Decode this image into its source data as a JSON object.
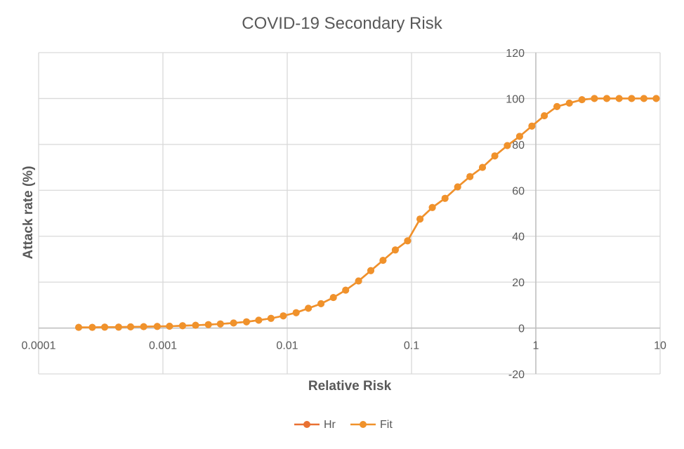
{
  "chart_data": {
    "type": "line",
    "title": "COVID-19 Secondary Risk",
    "xlabel": "Relative Risk",
    "ylabel": "Attack rate (%)",
    "x_scale": "log",
    "xlim": [
      0.0001,
      10
    ],
    "ylim": [
      -20,
      120
    ],
    "x_ticks": [
      "0.0001",
      "0.001",
      "0.01",
      "0.1",
      "1",
      "10"
    ],
    "x_tick_values": [
      0.0001,
      0.001,
      0.01,
      0.1,
      1,
      10
    ],
    "y_ticks": [
      "120",
      "100",
      "80",
      "60",
      "40",
      "20",
      "0",
      "-20"
    ],
    "y_tick_values": [
      120,
      100,
      80,
      60,
      40,
      20,
      0,
      -20
    ],
    "grid": true,
    "legend_position": "bottom",
    "series": [
      {
        "name": "Hr",
        "color": "#e97132",
        "x": [
          0.00021,
          0.00027,
          0.00034,
          0.00044,
          0.00055,
          0.0007,
          0.0009,
          0.00113,
          0.00144,
          0.00183,
          0.00232,
          0.0029,
          0.0037,
          0.0047,
          0.0059,
          0.0074,
          0.0093,
          0.0118,
          0.0148,
          0.0187,
          0.0235,
          0.0295,
          0.0375,
          0.047,
          0.059,
          0.074,
          0.093,
          0.117,
          0.147,
          0.186,
          0.235,
          0.295,
          0.372,
          0.468,
          0.59,
          0.74,
          0.93,
          1.17,
          1.48,
          1.86,
          2.35,
          2.96,
          3.72,
          4.68,
          5.9,
          7.4,
          9.3
        ],
        "y": [
          0.3,
          0.3,
          0.4,
          0.4,
          0.5,
          0.6,
          0.7,
          0.8,
          1.0,
          1.2,
          1.5,
          1.8,
          2.2,
          2.7,
          3.4,
          4.2,
          5.3,
          6.7,
          8.6,
          10.6,
          13.3,
          16.5,
          20.5,
          25,
          29.5,
          34,
          38,
          47.5,
          52.5,
          56.5,
          61.5,
          66,
          70,
          75,
          79.5,
          83.5,
          88,
          92.5,
          96.5,
          98,
          99.5,
          100,
          100,
          100,
          100,
          100,
          100
        ]
      },
      {
        "name": "Fit",
        "color": "#f0922b",
        "x": [
          0.00021,
          0.00027,
          0.00034,
          0.00044,
          0.00055,
          0.0007,
          0.0009,
          0.00113,
          0.00144,
          0.00183,
          0.00232,
          0.0029,
          0.0037,
          0.0047,
          0.0059,
          0.0074,
          0.0093,
          0.0118,
          0.0148,
          0.0187,
          0.0235,
          0.0295,
          0.0375,
          0.047,
          0.059,
          0.074,
          0.093,
          0.117,
          0.147,
          0.186,
          0.235,
          0.295,
          0.372,
          0.468,
          0.59,
          0.74,
          0.93,
          1.17,
          1.48,
          1.86,
          2.35,
          2.96,
          3.72,
          4.68,
          5.9,
          7.4,
          9.3
        ],
        "y": [
          0.3,
          0.3,
          0.4,
          0.4,
          0.5,
          0.6,
          0.7,
          0.8,
          1.0,
          1.2,
          1.5,
          1.8,
          2.2,
          2.7,
          3.4,
          4.2,
          5.3,
          6.7,
          8.6,
          10.6,
          13.3,
          16.5,
          20.5,
          25,
          29.5,
          34,
          38,
          47.5,
          52.5,
          56.5,
          61.5,
          66,
          70,
          75,
          79.5,
          83.5,
          88,
          92.5,
          96.5,
          98,
          99.5,
          100,
          100,
          100,
          100,
          100,
          100
        ]
      }
    ]
  }
}
